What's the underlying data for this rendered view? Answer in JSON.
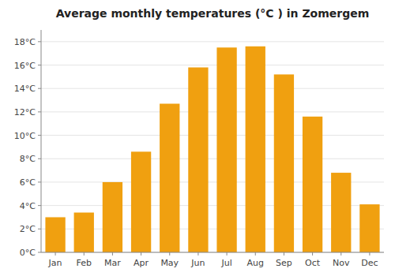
{
  "chart_data": {
    "type": "bar",
    "title": "Average monthly temperatures (°C ) in Zomergem",
    "categories": [
      "Jan",
      "Feb",
      "Mar",
      "Apr",
      "May",
      "Jun",
      "Jul",
      "Aug",
      "Sep",
      "Oct",
      "Nov",
      "Dec"
    ],
    "values": [
      3.0,
      3.4,
      6.0,
      8.6,
      12.7,
      15.8,
      17.5,
      17.6,
      15.2,
      11.6,
      6.8,
      4.1
    ],
    "color": "#F0A010",
    "ylim": [
      0,
      19
    ],
    "yticks": [
      {
        "value": 0,
        "label": "0°C"
      },
      {
        "value": 2,
        "label": "2°C"
      },
      {
        "value": 4,
        "label": "4°C"
      },
      {
        "value": 6,
        "label": "6°C"
      },
      {
        "value": 8,
        "label": "8°C"
      },
      {
        "value": 10,
        "label": "10°C"
      },
      {
        "value": 12,
        "label": "12°C"
      },
      {
        "value": 14,
        "label": "14°C"
      },
      {
        "value": 16,
        "label": "16°C"
      },
      {
        "value": 18,
        "label": "18°C"
      }
    ],
    "grid": true
  }
}
